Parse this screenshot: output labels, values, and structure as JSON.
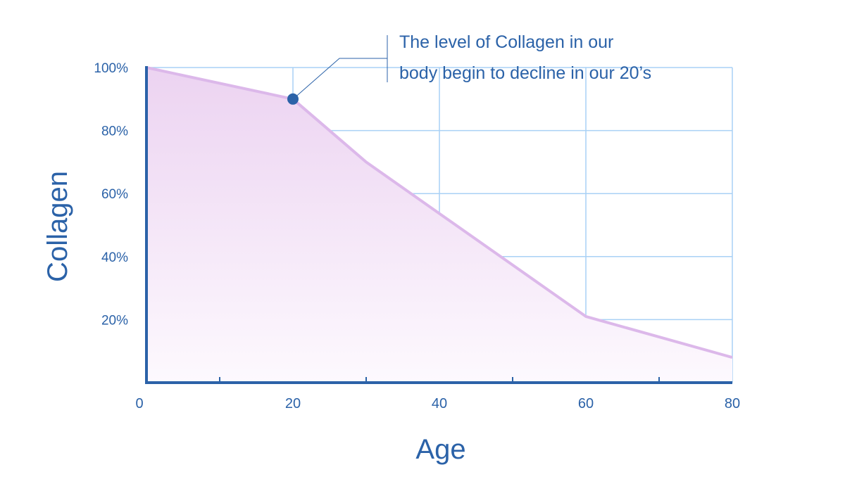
{
  "chart_data": {
    "type": "area",
    "title": "",
    "xlabel": "Age",
    "ylabel": "Collagen",
    "xlim": [
      0,
      80
    ],
    "ylim": [
      0,
      100
    ],
    "x_ticks": [
      0,
      20,
      40,
      60,
      80
    ],
    "x_tick_labels": [
      "0",
      "20",
      "40",
      "60",
      "80"
    ],
    "x_minor_ticks": [
      10,
      30,
      50,
      70
    ],
    "y_ticks": [
      20,
      40,
      60,
      80,
      100
    ],
    "y_tick_labels": [
      "20%",
      "40%",
      "60%",
      "80%",
      "100%"
    ],
    "grid": true,
    "x": [
      0,
      20,
      30,
      60,
      80
    ],
    "values": [
      100,
      90,
      70,
      21,
      8
    ],
    "highlight_point": {
      "x": 20,
      "y": 90
    },
    "annotation": {
      "line1": "The level of Collagen in our",
      "line2": "body begin to decline in our 20’s"
    },
    "colors": {
      "axis": "#2b62a8",
      "grid": "#a9d1f5",
      "line": "#dcb8ea",
      "fill": "#efd9f3",
      "point": "#2b62a8"
    }
  }
}
